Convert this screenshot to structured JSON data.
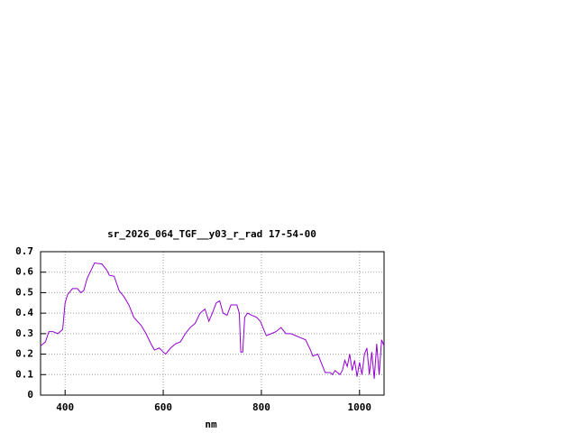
{
  "chart_data": {
    "type": "line",
    "title": "sr_2026_064_TGF__y03_r_rad 17-54-00",
    "x_label": "nm",
    "color": "#9400d3",
    "grid": true,
    "xlim": [
      350,
      1050
    ],
    "xticks": [
      400,
      600,
      800,
      1000
    ],
    "ylim": [
      0,
      0.7
    ],
    "yticks": [
      0,
      0.1,
      0.2,
      0.3,
      0.4,
      0.5,
      0.6,
      0.7
    ],
    "x": [
      350,
      360,
      367,
      375,
      385,
      395,
      400,
      405,
      415,
      425,
      432,
      438,
      445,
      455,
      460,
      475,
      485,
      490,
      500,
      510,
      520,
      530,
      540,
      555,
      565,
      575,
      582,
      592,
      600,
      605,
      615,
      625,
      635,
      645,
      655,
      665,
      675,
      685,
      693,
      700,
      708,
      715,
      722,
      730,
      738,
      750,
      755,
      758,
      762,
      766,
      772,
      780,
      790,
      798,
      810,
      820,
      830,
      840,
      850,
      860,
      870,
      880,
      890,
      900,
      905,
      915,
      920,
      930,
      940,
      945,
      950,
      960,
      965,
      970,
      975,
      980,
      985,
      990,
      995,
      1000,
      1005,
      1010,
      1015,
      1020,
      1025,
      1030,
      1035,
      1040,
      1045,
      1050
    ],
    "values": [
      0.24,
      0.26,
      0.31,
      0.31,
      0.3,
      0.32,
      0.45,
      0.49,
      0.52,
      0.52,
      0.5,
      0.51,
      0.57,
      0.62,
      0.645,
      0.64,
      0.61,
      0.585,
      0.58,
      0.51,
      0.48,
      0.44,
      0.38,
      0.34,
      0.3,
      0.25,
      0.22,
      0.23,
      0.21,
      0.2,
      0.23,
      0.25,
      0.26,
      0.3,
      0.33,
      0.35,
      0.4,
      0.42,
      0.36,
      0.4,
      0.45,
      0.46,
      0.4,
      0.39,
      0.44,
      0.44,
      0.4,
      0.21,
      0.21,
      0.38,
      0.4,
      0.39,
      0.38,
      0.36,
      0.29,
      0.3,
      0.31,
      0.33,
      0.3,
      0.3,
      0.29,
      0.28,
      0.27,
      0.22,
      0.19,
      0.2,
      0.17,
      0.11,
      0.11,
      0.1,
      0.12,
      0.1,
      0.12,
      0.17,
      0.14,
      0.2,
      0.12,
      0.17,
      0.09,
      0.16,
      0.1,
      0.2,
      0.23,
      0.1,
      0.21,
      0.08,
      0.25,
      0.1,
      0.27,
      0.24
    ]
  }
}
